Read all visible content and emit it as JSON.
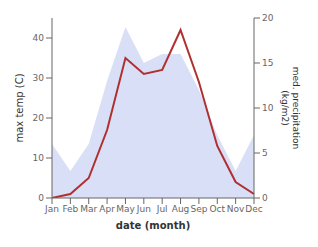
{
  "chart_data": {
    "type": "line",
    "xlabel": "date (month)",
    "ylabel": "max temp (C)",
    "y2label": "med. precipitation\n(kg/m2)",
    "categories": [
      "Jan",
      "Feb",
      "Mar",
      "Apr",
      "May",
      "Jun",
      "Jul",
      "Aug",
      "Sep",
      "Oct",
      "Nov",
      "Dec"
    ],
    "series": [
      {
        "type": "area",
        "color": "#b8c4ee",
        "axis": "y2",
        "values": [
          6,
          3,
          6,
          13,
          19,
          15,
          16,
          16,
          12,
          7,
          3,
          7
        ]
      },
      {
        "type": "line",
        "color": "#b03030",
        "values": [
          0,
          1,
          5,
          17,
          35,
          31,
          32,
          42,
          29,
          13,
          4,
          1
        ]
      }
    ],
    "ylim": [
      0,
      45
    ],
    "yticks": [
      0,
      10,
      20,
      30,
      40
    ],
    "y2lim": [
      0,
      20
    ],
    "y2ticks": [
      0,
      5,
      10,
      15,
      20
    ],
    "grid": false
  }
}
